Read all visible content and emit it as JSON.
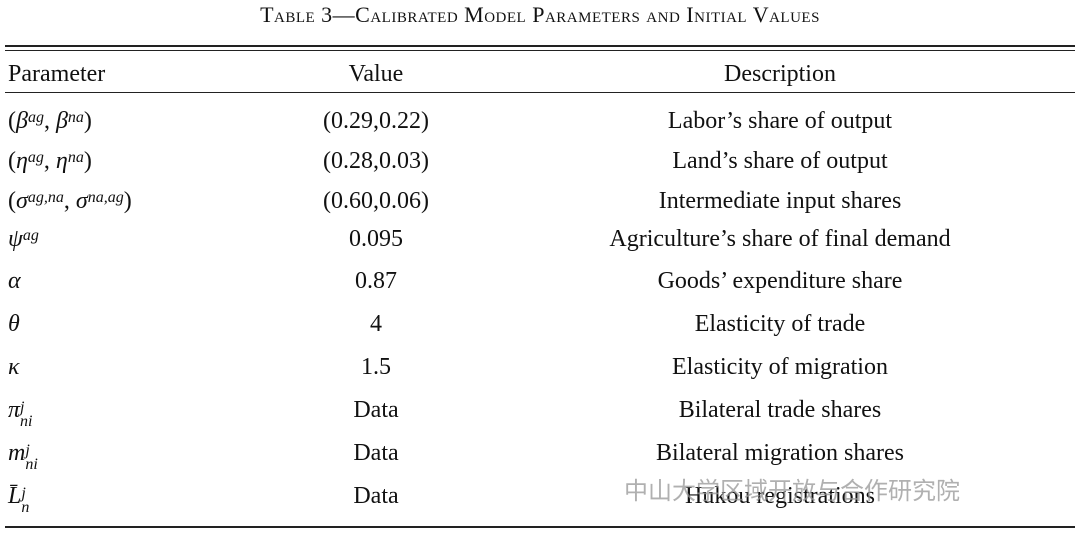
{
  "table": {
    "title": "Table 3—Calibrated Model Parameters and Initial Values",
    "header": [
      "Parameter",
      "Value",
      "Description"
    ],
    "rows": [
      {
        "param": [
          {
            "t": "("
          },
          {
            "t": "β",
            "sup": "ag"
          },
          {
            "t": ", "
          },
          {
            "t": "β",
            "sup": "na"
          },
          {
            "t": ")"
          }
        ],
        "value": "(0.29,0.22)",
        "desc": "Labor’s share of output"
      },
      {
        "param": [
          {
            "t": "("
          },
          {
            "t": "η",
            "sup": "ag"
          },
          {
            "t": ", "
          },
          {
            "t": "η",
            "sup": "na"
          },
          {
            "t": ")"
          }
        ],
        "value": "(0.28,0.03)",
        "desc": "Land’s share of output"
      },
      {
        "param": [
          {
            "t": "("
          },
          {
            "t": "σ",
            "sup": "ag,na"
          },
          {
            "t": ", "
          },
          {
            "t": "σ",
            "sup": "na,ag"
          },
          {
            "t": ")"
          }
        ],
        "value": "(0.60,0.06)",
        "desc": "Intermediate input shares"
      },
      {
        "param": [
          {
            "t": "ψ",
            "sup": "ag"
          }
        ],
        "value": 0.095,
        "desc": "Agriculture’s share of final demand"
      },
      {
        "param": [
          {
            "t": "α"
          }
        ],
        "value": 0.87,
        "desc": "Goods’ expenditure share"
      },
      {
        "param": [
          {
            "t": "θ"
          }
        ],
        "value": 4,
        "desc": "Elasticity of trade"
      },
      {
        "param": [
          {
            "t": "κ"
          }
        ],
        "value": 1.5,
        "desc": "Elasticity of migration"
      },
      {
        "param": [
          {
            "t": "π",
            "sup": "j",
            "sub": "ni"
          }
        ],
        "value": "Data",
        "desc": "Bilateral trade shares"
      },
      {
        "param": [
          {
            "t": "m",
            "sup": "j",
            "sub": "ni"
          }
        ],
        "value": "Data",
        "desc": "Bilateral migration shares"
      },
      {
        "param": [
          {
            "t": "L̄",
            "sup": "j",
            "sub": "n"
          }
        ],
        "value": "Data",
        "desc": "Hukou registrations"
      }
    ],
    "watermark": "中山大学区域开放与合作研究院"
  }
}
